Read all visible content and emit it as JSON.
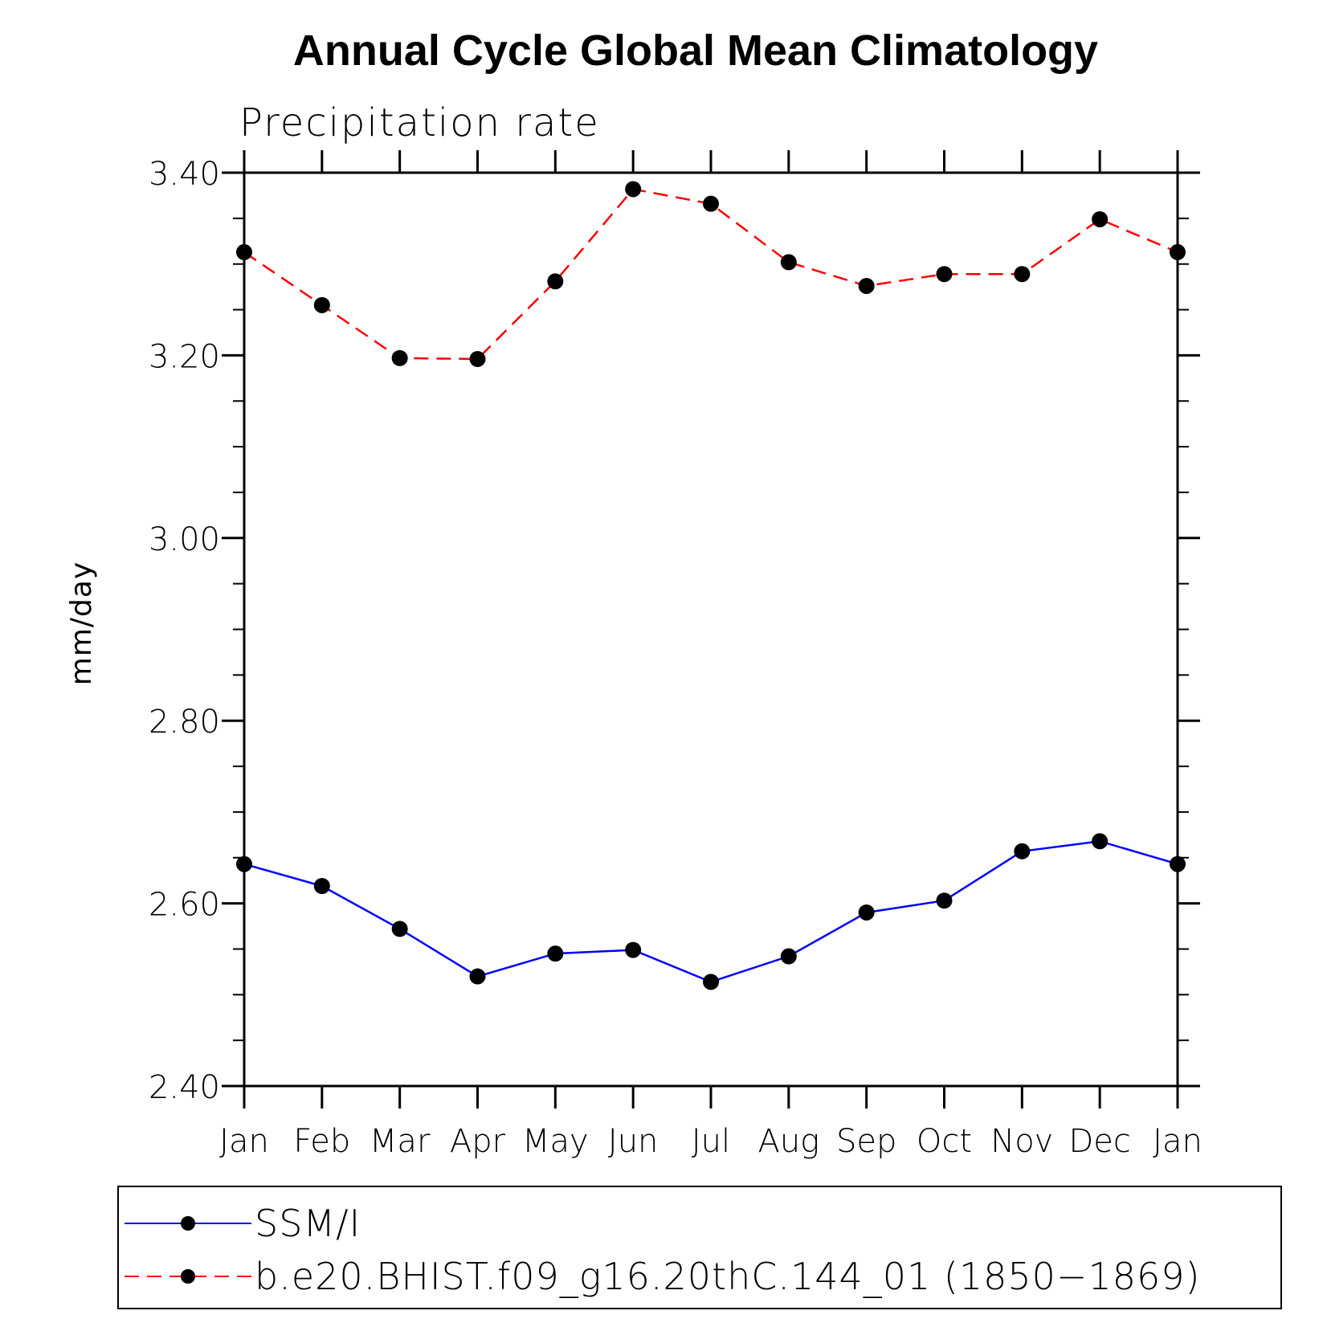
{
  "chart_data": {
    "type": "line",
    "title": "Annual Cycle Global Mean Climatology",
    "subtitle": "Precipitation rate",
    "ylabel": "mm/day",
    "xlabel": "",
    "categories": [
      "Jan",
      "Feb",
      "Mar",
      "Apr",
      "May",
      "Jun",
      "Jul",
      "Aug",
      "Sep",
      "Oct",
      "Nov",
      "Dec",
      "Jan"
    ],
    "ylim": [
      2.4,
      3.4
    ],
    "yticks": [
      "2.40",
      "2.60",
      "2.80",
      "3.00",
      "3.20",
      "3.40"
    ],
    "ytick_values": [
      2.4,
      2.6,
      2.8,
      3.0,
      3.2,
      3.4
    ],
    "minor_step": 0.05,
    "grid": false,
    "legend_position": "bottom",
    "series": [
      {
        "name": "SSM/I",
        "color": "#0000ff",
        "dash": "solid",
        "marker": "filled-circle",
        "values": [
          2.643,
          2.619,
          2.572,
          2.52,
          2.545,
          2.549,
          2.514,
          2.542,
          2.59,
          2.603,
          2.657,
          2.668,
          2.643
        ]
      },
      {
        "name": "b.e20.BHIST.f09_g16.20thC.144_01 (1850−1869)",
        "color": "#ff0000",
        "dash": "dashed",
        "marker": "filled-circle",
        "values": [
          3.313,
          3.255,
          3.197,
          3.196,
          3.281,
          3.382,
          3.366,
          3.302,
          3.276,
          3.289,
          3.289,
          3.349,
          3.313
        ]
      }
    ]
  }
}
